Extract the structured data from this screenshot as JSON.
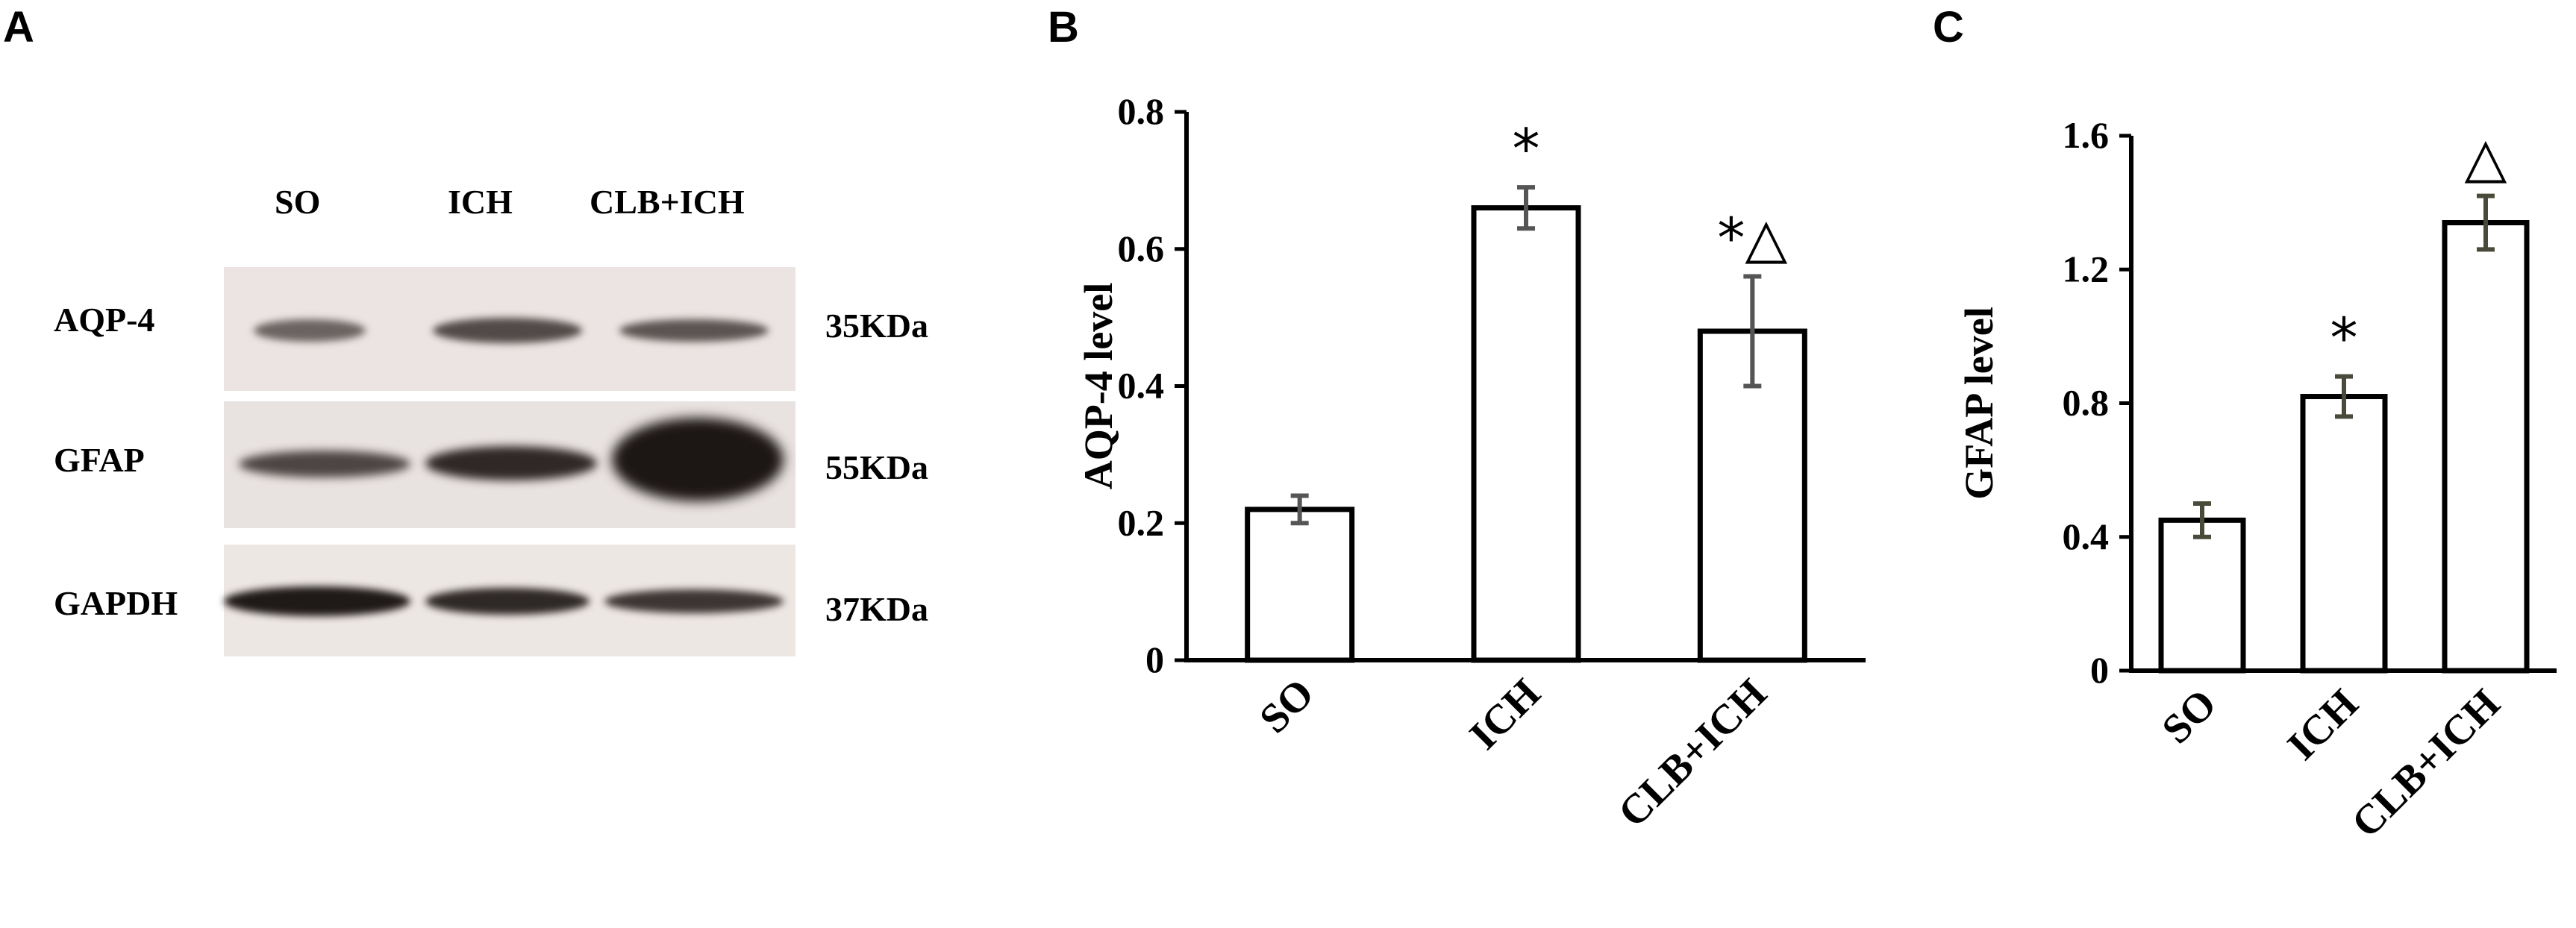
{
  "panels": {
    "a": {
      "letter": "A"
    },
    "b": {
      "letter": "B"
    },
    "c": {
      "letter": "C"
    }
  },
  "blot": {
    "lanes": [
      "SO",
      "ICH",
      "CLB+ICH"
    ],
    "rows": [
      {
        "name": "AQP-4",
        "size": "35KDa"
      },
      {
        "name": "GFAP",
        "size": "55KDa"
      },
      {
        "name": "GAPDH",
        "size": "37KDa"
      }
    ]
  },
  "chart_data": [
    {
      "type": "bar",
      "panel": "B",
      "categories": [
        "SO",
        "ICH",
        "CLB+ICH"
      ],
      "values": [
        0.22,
        0.66,
        0.48
      ],
      "errors": [
        0.02,
        0.03,
        0.08
      ],
      "annotations": [
        "",
        "*",
        "*△"
      ],
      "ylabel": "AQP-4 level",
      "ylim": [
        0,
        0.8
      ],
      "yticks": [
        "0",
        "0.2",
        "0.4",
        "0.6",
        "0.8"
      ],
      "grid": false
    },
    {
      "type": "bar",
      "panel": "C",
      "categories": [
        "SO",
        "ICH",
        "CLB+ICH"
      ],
      "values": [
        0.45,
        0.82,
        1.34
      ],
      "errors": [
        0.05,
        0.06,
        0.08
      ],
      "annotations": [
        "",
        "*",
        "△"
      ],
      "ylabel": "GFAP level",
      "ylim": [
        0,
        1.6
      ],
      "yticks": [
        "0",
        "0.4",
        "0.8",
        "1.2",
        "1.6"
      ],
      "grid": false
    }
  ]
}
